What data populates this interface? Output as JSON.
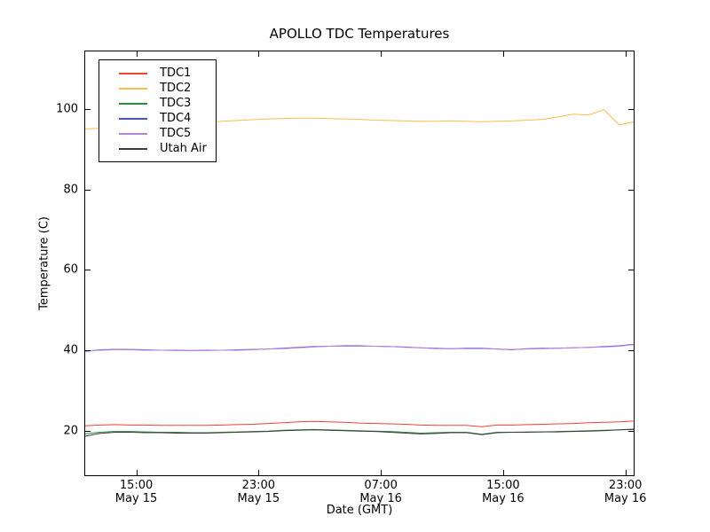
{
  "chart_data": {
    "type": "line",
    "title": "APOLLO TDC Temperatures",
    "xlabel": "Date (GMT)",
    "ylabel": "Temperature (C)",
    "grid": false,
    "legend_position": "upper-left",
    "axis_color": "#000000",
    "background_color": "#ffffff",
    "xlim_hours": [
      0,
      36
    ],
    "ylim": [
      8.7,
      114.5
    ],
    "y_ticks": [
      20,
      40,
      60,
      80,
      100
    ],
    "x_ticks": [
      {
        "pos": 3.4,
        "time": "15:00",
        "date": "May 15"
      },
      {
        "pos": 11.4,
        "time": "23:00",
        "date": "May 15"
      },
      {
        "pos": 19.4,
        "time": "07:00",
        "date": "May 16"
      },
      {
        "pos": 27.4,
        "time": "15:00",
        "date": "May 16"
      },
      {
        "pos": 35.4,
        "time": "23:00",
        "date": "May 16"
      }
    ],
    "x_hours": [
      0,
      1,
      2,
      3,
      4,
      5,
      6,
      7,
      8,
      9,
      10,
      11,
      12,
      13,
      14,
      15,
      16,
      17,
      18,
      19,
      20,
      21,
      22,
      23,
      24,
      25,
      26,
      27,
      28,
      29,
      30,
      31,
      32,
      33,
      34,
      35,
      36
    ],
    "series": [
      {
        "name": "TDC1",
        "color": "#ee4237",
        "values": [
          21.2,
          21.4,
          21.5,
          21.4,
          21.4,
          21.3,
          21.3,
          21.3,
          21.3,
          21.4,
          21.5,
          21.6,
          21.8,
          22.0,
          22.2,
          22.3,
          22.2,
          22.1,
          21.9,
          21.8,
          21.7,
          21.6,
          21.4,
          21.3,
          21.3,
          21.3,
          21.0,
          21.4,
          21.4,
          21.5,
          21.6,
          21.7,
          21.8,
          22.0,
          22.1,
          22.2,
          22.4
        ]
      },
      {
        "name": "TDC2",
        "color": "#fbbd4d",
        "values": [
          95.0,
          95.2,
          95.4,
          95.6,
          95.8,
          96.0,
          96.2,
          96.4,
          96.6,
          96.9,
          97.1,
          97.3,
          97.5,
          97.6,
          97.7,
          97.7,
          97.6,
          97.5,
          97.4,
          97.2,
          97.1,
          97.0,
          96.9,
          96.9,
          97.0,
          96.9,
          96.8,
          96.9,
          97.0,
          97.2,
          97.4,
          98.0,
          98.7,
          98.5,
          99.8,
          96.0,
          96.8
        ]
      },
      {
        "name": "TDC3",
        "color": "#2e8b40",
        "values": [
          19.2,
          19.6,
          19.8,
          19.8,
          19.7,
          19.6,
          19.6,
          19.5,
          19.5,
          19.6,
          19.7,
          19.8,
          19.9,
          20.1,
          20.2,
          20.3,
          20.2,
          20.1,
          20.0,
          19.9,
          19.8,
          19.6,
          19.4,
          19.5,
          19.6,
          19.6,
          19.1,
          19.6,
          19.6,
          19.7,
          19.7,
          19.8,
          19.9,
          20.0,
          20.1,
          20.2,
          20.4
        ]
      },
      {
        "name": "TDC4",
        "color": "#4a4ee0",
        "values": [
          39.7,
          40.1,
          40.2,
          40.2,
          40.1,
          40.0,
          40.0,
          39.9,
          40.0,
          40.0,
          40.1,
          40.2,
          40.3,
          40.5,
          40.7,
          40.9,
          41.0,
          41.1,
          41.1,
          41.0,
          40.9,
          40.8,
          40.6,
          40.5,
          40.4,
          40.5,
          40.5,
          40.3,
          40.1,
          40.4,
          40.5,
          40.5,
          40.6,
          40.7,
          40.9,
          41.1,
          41.5
        ]
      },
      {
        "name": "TDC5",
        "color": "#b885d6",
        "values": [
          39.8,
          40.0,
          40.1,
          40.1,
          40.0,
          40.0,
          39.9,
          39.9,
          39.9,
          40.0,
          40.0,
          40.1,
          40.3,
          40.4,
          40.6,
          40.8,
          41.0,
          41.0,
          41.0,
          41.0,
          40.9,
          40.7,
          40.6,
          40.4,
          40.4,
          40.4,
          40.4,
          40.3,
          40.2,
          40.3,
          40.4,
          40.5,
          40.6,
          40.7,
          40.8,
          41.0,
          41.4
        ]
      },
      {
        "name": "Utah Air",
        "color": "#3c3c3c",
        "values": [
          18.6,
          19.3,
          19.6,
          19.6,
          19.5,
          19.5,
          19.4,
          19.4,
          19.4,
          19.5,
          19.6,
          19.7,
          19.8,
          20.0,
          20.1,
          20.2,
          20.1,
          20.0,
          19.9,
          19.8,
          19.6,
          19.4,
          19.2,
          19.3,
          19.5,
          19.5,
          19.0,
          19.5,
          19.6,
          19.6,
          19.7,
          19.7,
          19.8,
          19.9,
          20.0,
          20.2,
          20.3
        ]
      }
    ]
  }
}
